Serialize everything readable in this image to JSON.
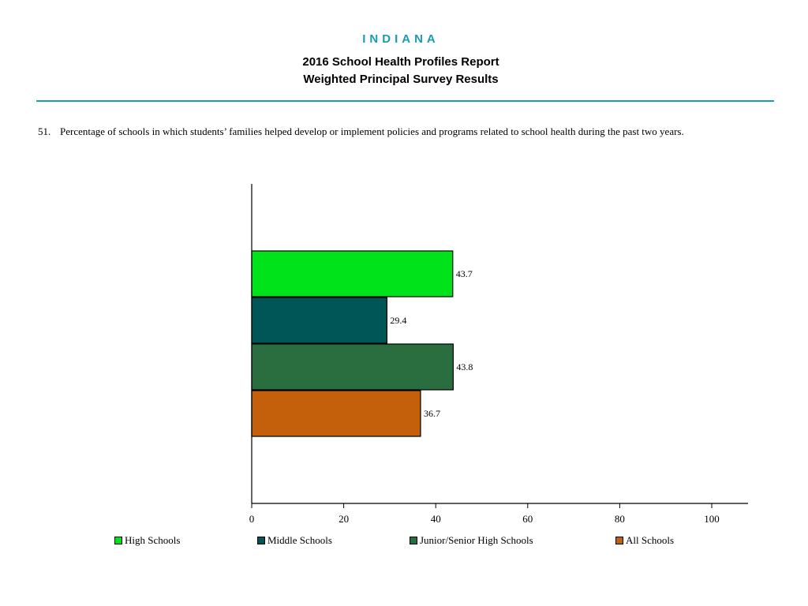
{
  "header": {
    "state": "INDIANA",
    "title_line1": "2016 School Health Profiles Report",
    "title_line2": "Weighted Principal Survey Results"
  },
  "question": {
    "number": "51.",
    "text": "Percentage of schools in which students’ families helped develop or implement policies and programs related to school health during the past two years."
  },
  "chart_data": {
    "type": "bar",
    "orientation": "horizontal",
    "categories": [
      "High Schools",
      "Middle Schools",
      "Junior/Senior High Schools",
      "All Schools"
    ],
    "values": [
      43.7,
      29.4,
      43.8,
      36.7
    ],
    "value_labels": [
      "43.7",
      "29.4",
      "43.8",
      "36.7"
    ],
    "colors": [
      "#00e31a",
      "#005556",
      "#2a6e40",
      "#c45f0c"
    ],
    "xlim": [
      0,
      100
    ],
    "x_ticks": [
      0,
      20,
      40,
      60,
      80,
      100
    ],
    "legend_position": "bottom",
    "grid": false
  }
}
